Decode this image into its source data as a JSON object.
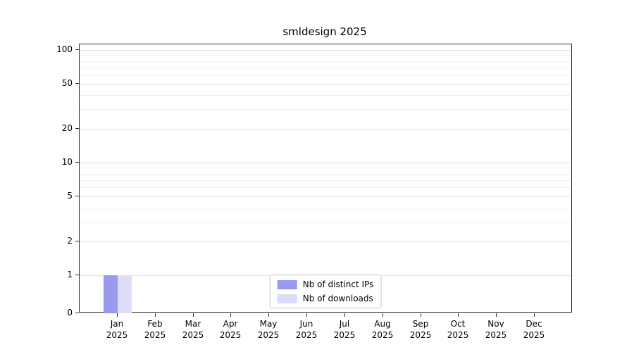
{
  "title": "smldesign 2025",
  "chart_data": {
    "type": "bar",
    "title": "smldesign 2025",
    "categories": [
      "Jan 2025",
      "Feb 2025",
      "Mar 2025",
      "Apr 2025",
      "May 2025",
      "Jun 2025",
      "Jul 2025",
      "Aug 2025",
      "Sep 2025",
      "Oct 2025",
      "Nov 2025",
      "Dec 2025"
    ],
    "series": [
      {
        "name": "Nb of distinct IPs",
        "color": "#9999ee",
        "values": [
          1,
          0,
          0,
          0,
          0,
          0,
          0,
          0,
          0,
          0,
          0,
          0
        ]
      },
      {
        "name": "Nb of downloads",
        "color": "#dcdcf8",
        "values": [
          1,
          0,
          0,
          0,
          0,
          0,
          0,
          0,
          0,
          0,
          0,
          0
        ]
      }
    ],
    "xlabel": "",
    "ylabel": "",
    "yscale": "log",
    "y_linear_below": 1,
    "yticks": [
      0,
      1,
      2,
      5,
      10,
      20,
      50,
      100
    ],
    "yticks_minor": [
      3,
      4,
      6,
      7,
      8,
      9,
      30,
      40,
      60,
      70,
      80,
      90
    ],
    "ylim": [
      0,
      100
    ],
    "grid": true,
    "legend_position": "lower center"
  }
}
